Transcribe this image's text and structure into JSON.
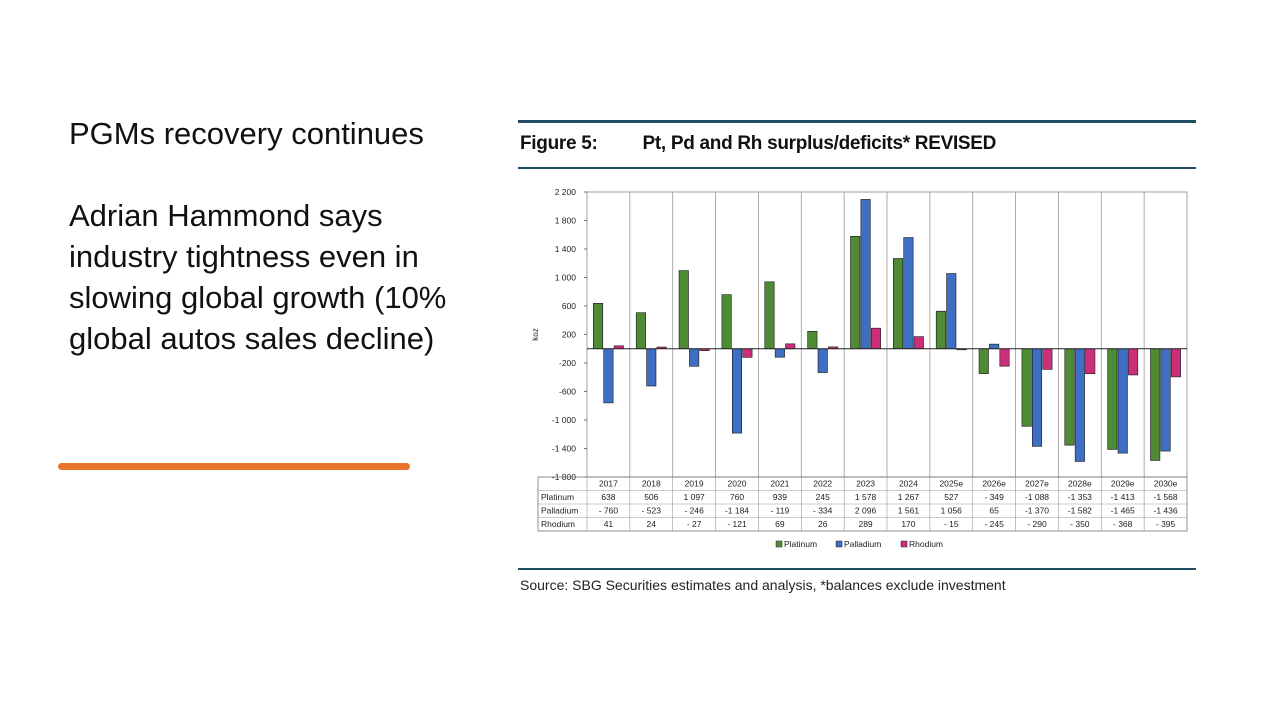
{
  "slide": {
    "heading": "PGMs recovery continues",
    "body": "Adrian Hammond says industry tightness even in slowing global growth (10% global autos sales decline)",
    "accent_color": "#e8742a"
  },
  "figure": {
    "number": "Figure 5:",
    "title": "Pt, Pd and Rh surplus/deficits* REVISED",
    "source": "Source: SBG Securities estimates and analysis, *balances exclude investment"
  },
  "chart_data": {
    "type": "bar",
    "categories": [
      "2017",
      "2018",
      "2019",
      "2020",
      "2021",
      "2022",
      "2023",
      "2024",
      "2025e",
      "2026e",
      "2027e",
      "2028e",
      "2029e",
      "2030e"
    ],
    "ylabel": "koz",
    "ylim": [
      -1800,
      2200
    ],
    "yticks": [
      2200,
      1800,
      1400,
      1000,
      600,
      200,
      -200,
      -600,
      -1000,
      -1400,
      -1800
    ],
    "ytick_labels": [
      "2 200",
      "1 800",
      "1 400",
      "1 000",
      "600",
      "200",
      "-200",
      "-600",
      "-1 000",
      "-1 400",
      "-1 800"
    ],
    "grid": "vertical separators",
    "legend_position": "bottom-center",
    "series": [
      {
        "name": "Platinum",
        "color": "#4f8a35",
        "values": [
          638,
          506,
          1097,
          760,
          939,
          245,
          1578,
          1267,
          527,
          -349,
          -1088,
          -1353,
          -1413,
          -1568
        ],
        "labels": [
          "638",
          "506",
          "1 097",
          "760",
          "939",
          "245",
          "1 578",
          "1 267",
          "527",
          "- 349",
          "-1 088",
          "-1 353",
          "-1 413",
          "-1 568"
        ]
      },
      {
        "name": "Palladium",
        "color": "#3e6fc2",
        "values": [
          -760,
          -523,
          -246,
          -1184,
          -119,
          -334,
          2096,
          1561,
          1056,
          65,
          -1370,
          -1582,
          -1465,
          -1436
        ],
        "labels": [
          "- 760",
          "- 523",
          "- 246",
          "-1 184",
          "- 119",
          "- 334",
          "2 096",
          "1 561",
          "1 056",
          "65",
          "-1 370",
          "-1 582",
          "-1 465",
          "-1 436"
        ]
      },
      {
        "name": "Rhodium",
        "color": "#cc2f7a",
        "values": [
          41,
          24,
          -27,
          -121,
          69,
          26,
          289,
          170,
          -15,
          -245,
          -290,
          -350,
          -368,
          -395
        ],
        "labels": [
          "41",
          "24",
          "- 27",
          "- 121",
          "69",
          "26",
          "289",
          "170",
          "- 15",
          "- 245",
          "- 290",
          "- 350",
          "- 368",
          "- 395"
        ]
      }
    ]
  }
}
